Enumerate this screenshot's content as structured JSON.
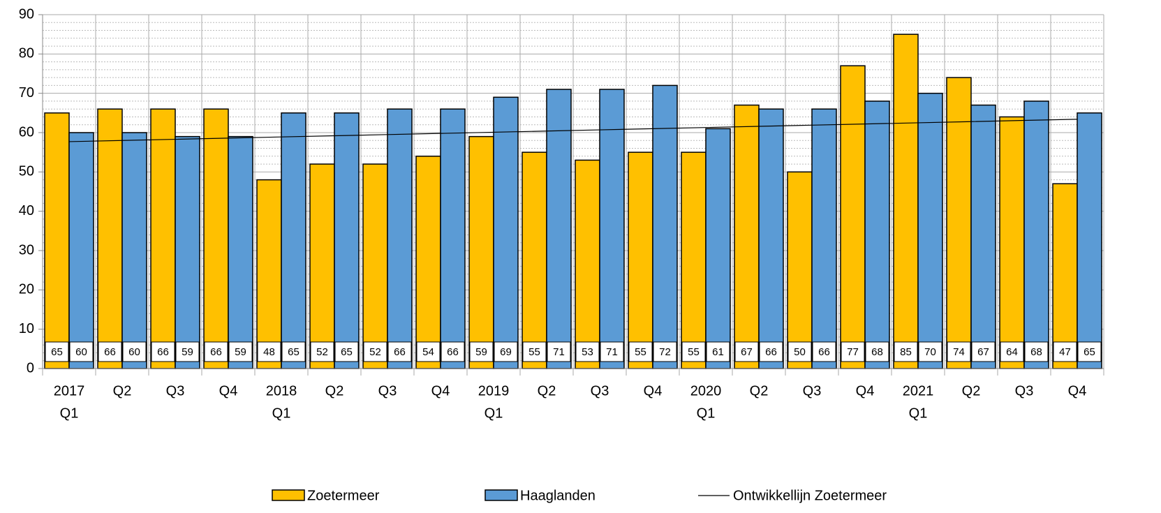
{
  "chart_data": {
    "type": "bar",
    "categories": [
      [
        "2017",
        "Q1"
      ],
      [
        "Q2"
      ],
      [
        "Q3"
      ],
      [
        "Q4"
      ],
      [
        "2018",
        "Q1"
      ],
      [
        "Q2"
      ],
      [
        "Q3"
      ],
      [
        "Q4"
      ],
      [
        "2019",
        "Q1"
      ],
      [
        "Q2"
      ],
      [
        "Q3"
      ],
      [
        "Q4"
      ],
      [
        "2020",
        "Q1"
      ],
      [
        "Q2"
      ],
      [
        "Q3"
      ],
      [
        "Q4"
      ],
      [
        "2021",
        "Q1"
      ],
      [
        "Q2"
      ],
      [
        "Q3"
      ],
      [
        "Q4"
      ]
    ],
    "series": [
      {
        "name": "Zoetermeer",
        "color": "#ffc000",
        "values": [
          65,
          66,
          66,
          66,
          48,
          52,
          52,
          54,
          59,
          55,
          53,
          55,
          55,
          67,
          50,
          77,
          85,
          74,
          64,
          47
        ]
      },
      {
        "name": "Haaglanden",
        "color": "#5b9bd5",
        "values": [
          60,
          60,
          59,
          59,
          65,
          65,
          66,
          66,
          69,
          71,
          71,
          72,
          61,
          66,
          66,
          68,
          70,
          67,
          68,
          65
        ]
      },
      {
        "name": "Ontwikkellijn Zoetermeer",
        "color": "#000000",
        "type": "line",
        "values": [
          57.7,
          58.0,
          58.3,
          58.6,
          58.9,
          59.2,
          59.5,
          59.8,
          60.1,
          60.4,
          60.7,
          61.0,
          61.3,
          61.6,
          61.9,
          62.2,
          62.5,
          62.8,
          63.1,
          63.4
        ]
      }
    ],
    "ylim": [
      0,
      90
    ],
    "yticks": [
      0,
      10,
      20,
      30,
      40,
      50,
      60,
      70,
      80,
      90
    ],
    "yminorticks": [
      2,
      4,
      6,
      8,
      12,
      14,
      16,
      18,
      22,
      24,
      26,
      28,
      32,
      34,
      36,
      38,
      42,
      44,
      46,
      48,
      52,
      54,
      56,
      58,
      62,
      64,
      66,
      68,
      72,
      74,
      76,
      78,
      82,
      84,
      86,
      88
    ],
    "grid": true,
    "legend": "bottom"
  }
}
